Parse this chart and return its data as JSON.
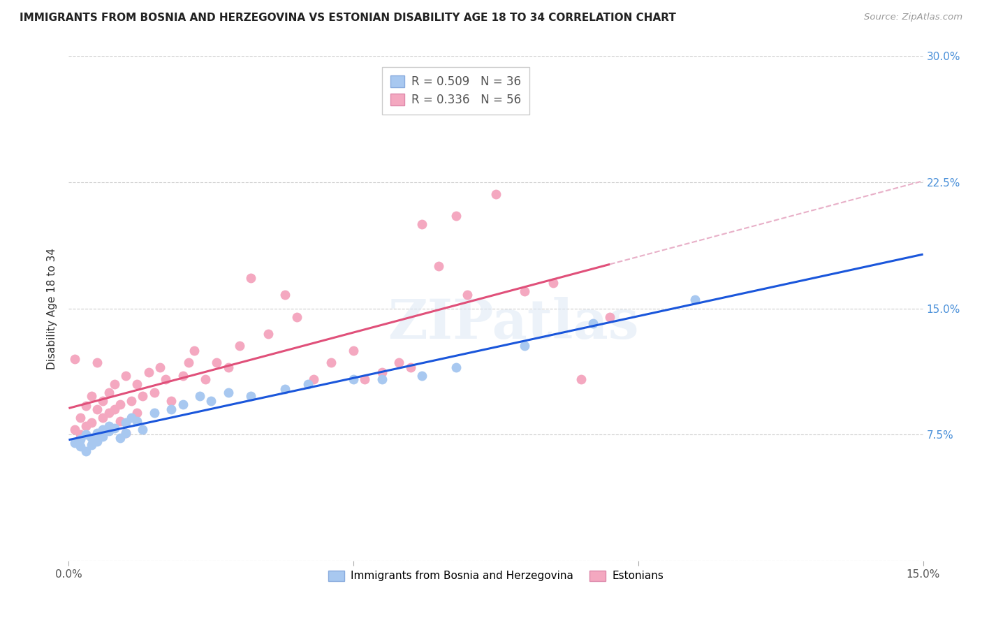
{
  "title": "IMMIGRANTS FROM BOSNIA AND HERZEGOVINA VS ESTONIAN DISABILITY AGE 18 TO 34 CORRELATION CHART",
  "source": "Source: ZipAtlas.com",
  "ylabel": "Disability Age 18 to 34",
  "xlim": [
    0.0,
    0.15
  ],
  "ylim": [
    0.0,
    0.3
  ],
  "blue_R": 0.509,
  "blue_N": 36,
  "pink_R": 0.336,
  "pink_N": 56,
  "blue_color": "#a8c8f0",
  "pink_color": "#f4a8c0",
  "blue_line_color": "#1a56db",
  "pink_line_color": "#e0507a",
  "pink_dash_color": "#e8b0c8",
  "blue_x": [
    0.001,
    0.002,
    0.002,
    0.003,
    0.003,
    0.004,
    0.004,
    0.005,
    0.005,
    0.006,
    0.006,
    0.007,
    0.007,
    0.008,
    0.009,
    0.01,
    0.01,
    0.011,
    0.012,
    0.013,
    0.015,
    0.018,
    0.02,
    0.023,
    0.025,
    0.028,
    0.032,
    0.038,
    0.042,
    0.05,
    0.055,
    0.062,
    0.068,
    0.08,
    0.092,
    0.11
  ],
  "blue_y": [
    0.07,
    0.068,
    0.072,
    0.065,
    0.075,
    0.073,
    0.069,
    0.071,
    0.076,
    0.078,
    0.074,
    0.08,
    0.077,
    0.079,
    0.073,
    0.082,
    0.076,
    0.085,
    0.083,
    0.078,
    0.088,
    0.09,
    0.093,
    0.098,
    0.095,
    0.1,
    0.098,
    0.102,
    0.105,
    0.108,
    0.108,
    0.11,
    0.115,
    0.128,
    0.141,
    0.155
  ],
  "pink_x": [
    0.001,
    0.001,
    0.002,
    0.002,
    0.003,
    0.003,
    0.004,
    0.004,
    0.005,
    0.005,
    0.006,
    0.006,
    0.007,
    0.007,
    0.008,
    0.008,
    0.009,
    0.009,
    0.01,
    0.01,
    0.011,
    0.012,
    0.012,
    0.013,
    0.014,
    0.015,
    0.016,
    0.017,
    0.018,
    0.02,
    0.021,
    0.022,
    0.024,
    0.026,
    0.028,
    0.03,
    0.032,
    0.035,
    0.038,
    0.04,
    0.043,
    0.046,
    0.05,
    0.052,
    0.055,
    0.058,
    0.06,
    0.062,
    0.065,
    0.068,
    0.07,
    0.075,
    0.08,
    0.085,
    0.09,
    0.095
  ],
  "pink_y": [
    0.078,
    0.12,
    0.075,
    0.085,
    0.08,
    0.092,
    0.082,
    0.098,
    0.09,
    0.118,
    0.085,
    0.095,
    0.088,
    0.1,
    0.09,
    0.105,
    0.083,
    0.093,
    0.076,
    0.11,
    0.095,
    0.088,
    0.105,
    0.098,
    0.112,
    0.1,
    0.115,
    0.108,
    0.095,
    0.11,
    0.118,
    0.125,
    0.108,
    0.118,
    0.115,
    0.128,
    0.168,
    0.135,
    0.158,
    0.145,
    0.108,
    0.118,
    0.125,
    0.108,
    0.112,
    0.118,
    0.115,
    0.2,
    0.175,
    0.205,
    0.158,
    0.218,
    0.16,
    0.165,
    0.108,
    0.145
  ]
}
